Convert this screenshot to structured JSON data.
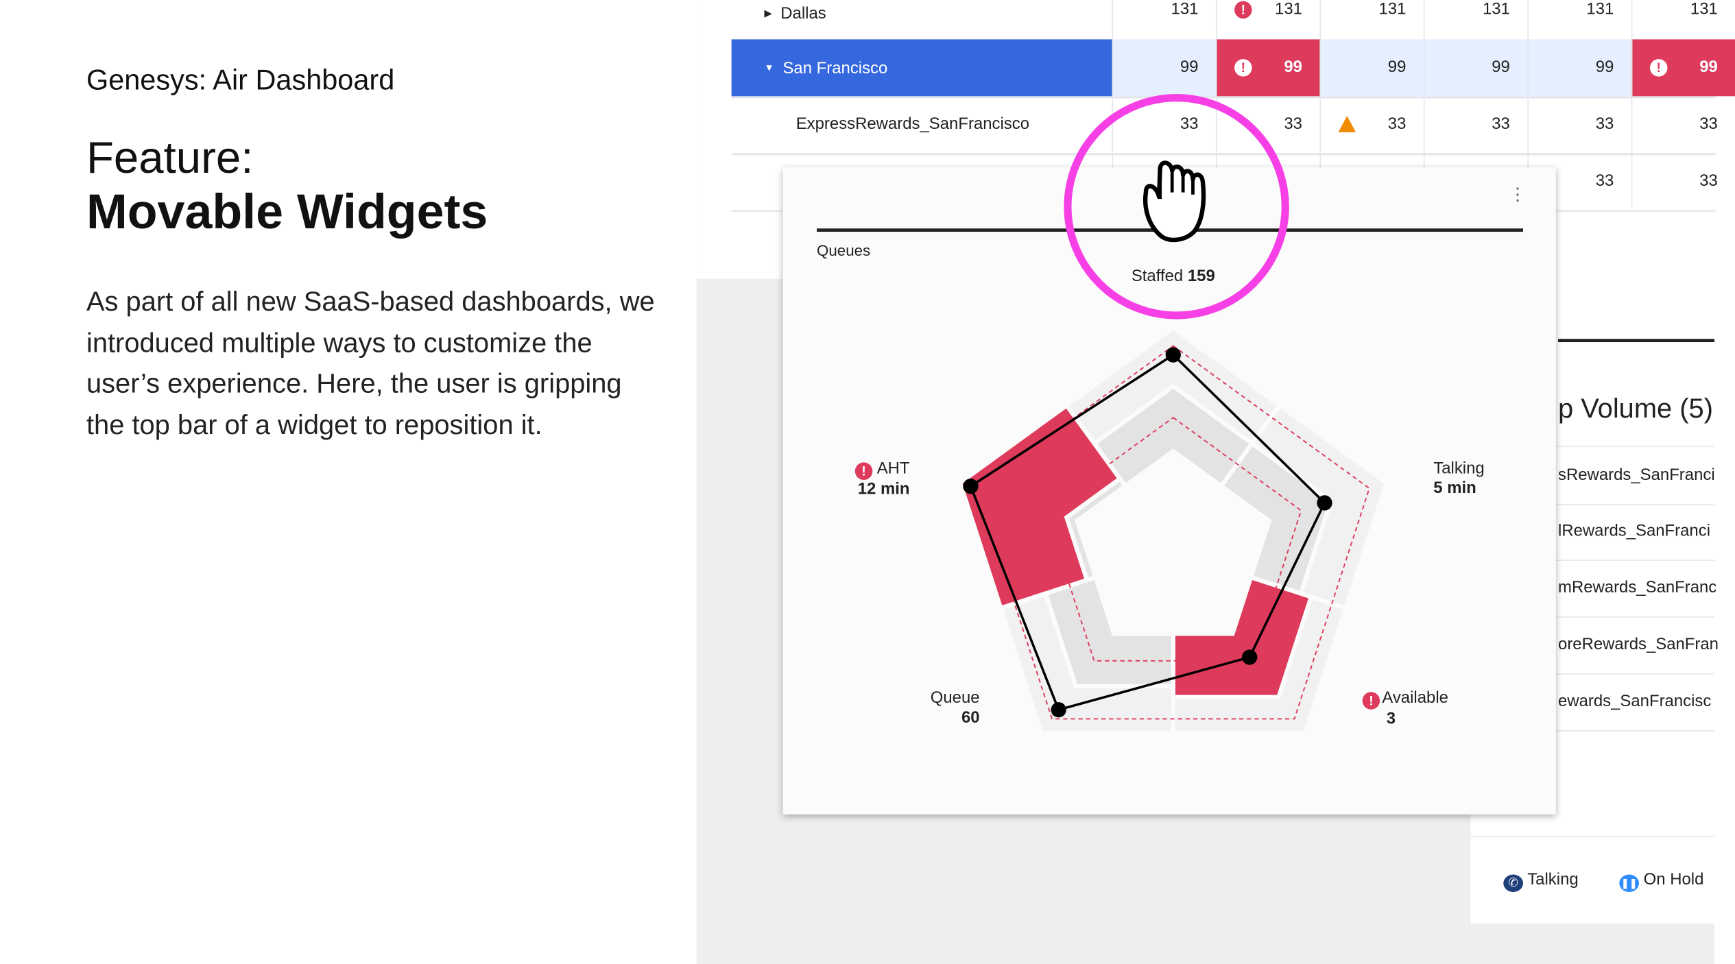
{
  "left": {
    "brand": "Genesys: Air Dashboard",
    "feature_label": "Feature:",
    "feature_name": "Movable Widgets",
    "description": "As part of all new SaaS-based dashboards, we introduced multiple ways to customize the user’s experience. Here, the user is gripping the top bar of a widget to reposition it."
  },
  "table": {
    "rows": [
      {
        "name": "Dallas",
        "expand": "collapsed",
        "values": [
          "131",
          "131",
          "131",
          "131",
          "131",
          "131"
        ],
        "alerts": [
          1
        ],
        "warnings": []
      },
      {
        "name": "San Francisco",
        "expand": "expanded",
        "selected": true,
        "values": [
          "99",
          "99",
          "99",
          "99",
          "99",
          "99"
        ],
        "alerts": [
          1,
          5
        ],
        "warnings": []
      },
      {
        "name": "ExpressRewards_SanFrancisco",
        "values": [
          "33",
          "33",
          "33",
          "33",
          "33",
          "33"
        ],
        "alerts": [],
        "warnings": [
          2
        ]
      },
      {
        "name": "",
        "values": [
          "",
          "",
          "",
          "",
          "33",
          "33"
        ],
        "alerts": [],
        "warnings": []
      }
    ],
    "colors": {
      "selected": "#3567de",
      "selected_cells": "#e5efff",
      "alert": "#de3a5b",
      "warning": "#f08a00"
    }
  },
  "volume_widget": {
    "title": "p Volume (5)",
    "items": [
      "sRewards_SanFranci",
      "lRewards_SanFranci",
      "mRewards_SanFranc",
      "oreRewards_SanFran",
      "ewards_SanFrancisc"
    ],
    "legend": [
      {
        "icon": "phone-icon",
        "label": "Talking",
        "color": "#1f3f7a"
      },
      {
        "icon": "pause-icon",
        "label": "On Hold",
        "color": "#2f8cff"
      }
    ]
  },
  "radar_widget": {
    "title": "Queues",
    "staffed_label": "Staffed",
    "staffed_value": "159",
    "menu_icon": "kebab-icon",
    "cursor_icon": "grab-hand-icon",
    "highlight_color": "#f640e5"
  },
  "chart_data": {
    "type": "radar",
    "axes": [
      {
        "label": "Staffed",
        "value": "159",
        "level": 0.88,
        "alert": false
      },
      {
        "label": "Talking",
        "value": "5 min",
        "level": 0.71,
        "alert": false
      },
      {
        "label": "Available",
        "value": "3",
        "level": 0.58,
        "alert": true
      },
      {
        "label": "Queue",
        "value": "60",
        "level": 0.87,
        "alert": false
      },
      {
        "label": "AHT",
        "value": "12 min",
        "level": 0.95,
        "alert": true
      }
    ],
    "alert_color": "#de3a5b"
  }
}
